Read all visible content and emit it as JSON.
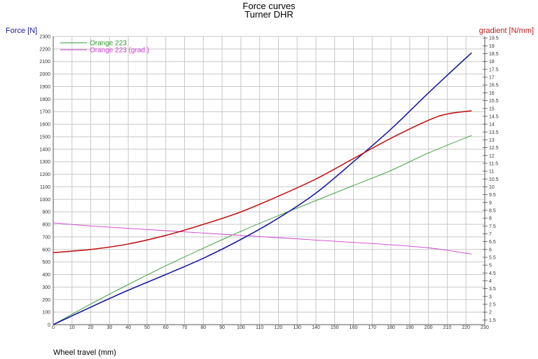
{
  "chart_data": {
    "type": "line",
    "title": "Force curves",
    "subtitle": "Turner DHR",
    "xlabel": "Wheel travel (mm)",
    "ylabel": "Force [N]",
    "y2label": "gradient [N/mm]",
    "xlim": [
      0,
      230
    ],
    "ylim": [
      0,
      2300
    ],
    "y2lim": [
      1.2,
      19.6
    ],
    "grid": true,
    "legend_position": "top-left",
    "x_ticks": [
      0,
      10,
      20,
      30,
      40,
      50,
      60,
      70,
      80,
      90,
      100,
      110,
      120,
      130,
      140,
      150,
      160,
      170,
      180,
      190,
      200,
      210,
      220,
      230
    ],
    "y_ticks": [
      0,
      100,
      200,
      300,
      400,
      500,
      600,
      700,
      800,
      900,
      1000,
      1100,
      1200,
      1300,
      1400,
      1500,
      1600,
      1700,
      1800,
      1900,
      2000,
      2100,
      2200,
      2300
    ],
    "y2_ticks": [
      "1.5",
      "2",
      "2.5",
      "3",
      "3.5",
      "4",
      "4.5",
      "5",
      "5.5",
      "6",
      "6.5",
      "7",
      "7.5",
      "8",
      "8.5",
      "9",
      "9.5",
      "10",
      "10.5",
      "11",
      "11.5",
      "12",
      "12.5",
      "13",
      "13.5",
      "14",
      "14.5",
      "15",
      "15.5",
      "16",
      "16.5",
      "17",
      "17.5",
      "18",
      "18.5",
      "19",
      "19.5"
    ],
    "legend": [
      {
        "label": "Orange 223",
        "color": "#2e9a2e"
      },
      {
        "label": "Orange 223 (grad.)",
        "color": "#d040d0"
      }
    ],
    "series": [
      {
        "color": "#2e9a2e",
        "axis": "left",
        "x": [
          0,
          20,
          40,
          60,
          80,
          100,
          120,
          140,
          160,
          180,
          200,
          223
        ],
        "y": [
          0,
          165,
          320,
          470,
          610,
          745,
          870,
          990,
          1110,
          1230,
          1370,
          1510
        ]
      },
      {
        "color": "#d040d0",
        "axis": "right",
        "x": [
          0,
          20,
          40,
          60,
          80,
          100,
          120,
          140,
          160,
          180,
          200,
          210,
          223
        ],
        "y": [
          7.7,
          7.5,
          7.35,
          7.2,
          7.05,
          6.9,
          6.75,
          6.6,
          6.45,
          6.3,
          6.1,
          5.95,
          5.7
        ]
      },
      {
        "color": "#1a1aa0",
        "axis": "left",
        "x": [
          0,
          20,
          40,
          60,
          80,
          100,
          120,
          140,
          160,
          180,
          200,
          223
        ],
        "y": [
          0,
          140,
          275,
          400,
          530,
          680,
          850,
          1050,
          1300,
          1560,
          1850,
          2170
        ]
      },
      {
        "color": "#c01818",
        "axis": "right",
        "x": [
          0,
          20,
          40,
          60,
          80,
          100,
          120,
          140,
          160,
          180,
          200,
          210,
          223
        ],
        "y": [
          5.8,
          6.0,
          6.35,
          6.9,
          7.6,
          8.4,
          9.4,
          10.5,
          11.8,
          13.1,
          14.25,
          14.65,
          14.85
        ]
      }
    ]
  }
}
